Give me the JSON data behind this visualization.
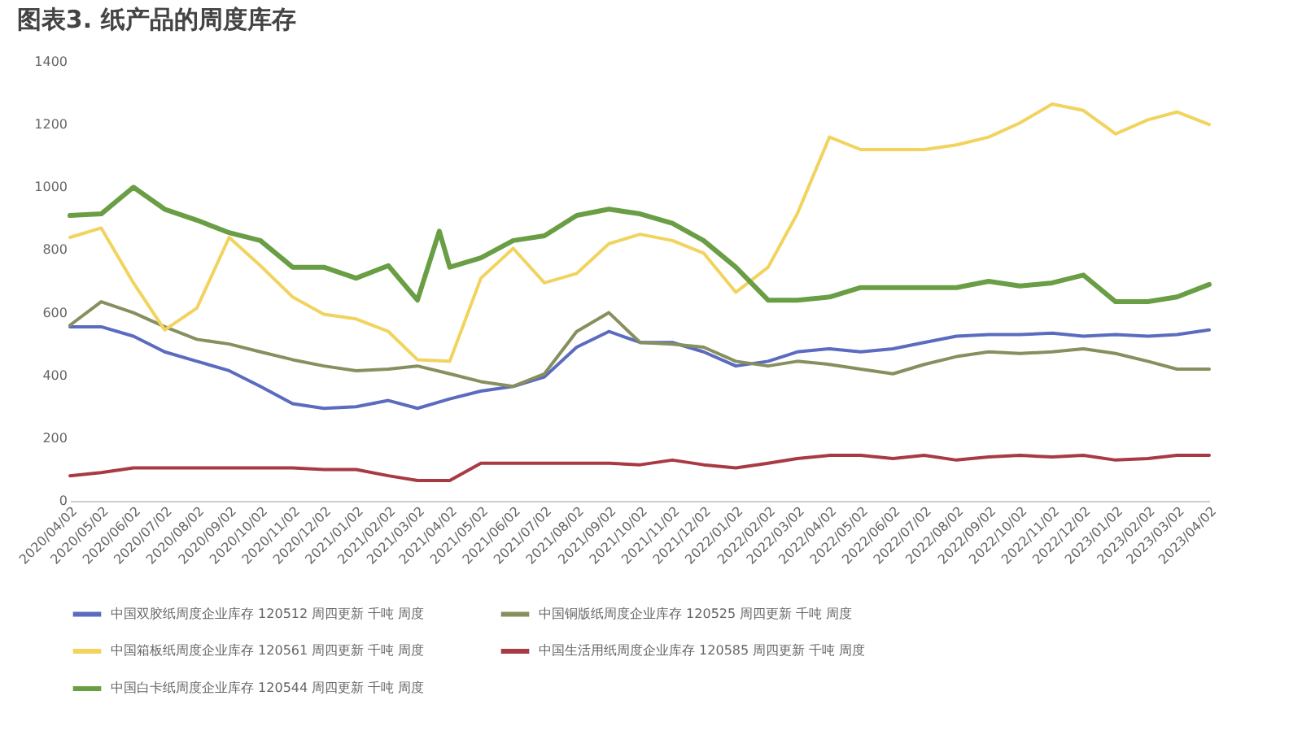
{
  "chart_data": {
    "type": "line",
    "title": "图表3.    纸产品的周度库存",
    "x": [
      "2020-04-02",
      "2020-05-02",
      "2020-06-02",
      "2020-07-02",
      "2020-08-02",
      "2020-09-02",
      "2020-10-02",
      "2020-11-02",
      "2020-12-02",
      "2021-01-02",
      "2021-02-02",
      "2021-03-02",
      "2021-04-02",
      "2021-05-02",
      "2021-06-02",
      "2021-07-02",
      "2021-08-02",
      "2021-09-02",
      "2021-10-02",
      "2021-11-02",
      "2021-12-02",
      "2022-01-02",
      "2022-02-02",
      "2022-03-02",
      "2022-04-02",
      "2022-05-02",
      "2022-06-02",
      "2022-07-02",
      "2022-08-02",
      "2022-09-02",
      "2022-10-02",
      "2022-11-02",
      "2022-12-02",
      "2023-01-02",
      "2023-02-02",
      "2023-03-02",
      "2023-04-02"
    ],
    "series": [
      {
        "name": "中国双胶纸周度企业库存 120512 周四更新 千吨 周度",
        "color": "#5b6bbf",
        "values": [
          555,
          555,
          525,
          475,
          445,
          415,
          365,
          310,
          295,
          300,
          320,
          295,
          325,
          350,
          365,
          395,
          490,
          540,
          505,
          505,
          475,
          430,
          445,
          475,
          485,
          475,
          485,
          505,
          525,
          530,
          530,
          535,
          525,
          530,
          525,
          530,
          545
        ]
      },
      {
        "name": "中国铜版纸周度企业库存 120525 周四更新 千吨 周度",
        "color": "#86905f",
        "values": [
          560,
          635,
          600,
          555,
          515,
          500,
          475,
          450,
          430,
          415,
          420,
          430,
          405,
          380,
          365,
          405,
          540,
          600,
          505,
          500,
          490,
          445,
          430,
          445,
          435,
          420,
          405,
          435,
          460,
          475,
          470,
          475,
          485,
          470,
          445,
          420,
          420
        ]
      },
      {
        "name": "中国箱板纸周度企业库存 120561 周四更新 千吨 周度",
        "color": "#f1d35e",
        "values": [
          840,
          870,
          695,
          545,
          615,
          840,
          750,
          650,
          595,
          580,
          540,
          450,
          445,
          710,
          805,
          695,
          725,
          820,
          850,
          830,
          790,
          665,
          745,
          915,
          1160,
          1120,
          1120,
          1120,
          1135,
          1160,
          1205,
          1265,
          1245,
          1170,
          1215,
          1240,
          1200
        ]
      },
      {
        "name": "中国生活用纸周度企业库存 120585 周四更新 千吨 周度",
        "color": "#a83a44",
        "values": [
          80,
          90,
          105,
          105,
          105,
          105,
          105,
          105,
          100,
          100,
          80,
          65,
          65,
          120,
          120,
          120,
          120,
          120,
          115,
          130,
          115,
          105,
          120,
          135,
          145,
          145,
          135,
          145,
          130,
          140,
          145,
          140,
          145,
          130,
          135,
          145,
          145
        ]
      },
      {
        "name": "中国白卡纸周度企业库存 120544 周四更新 千吨 周度",
        "color": "#6a9e45",
        "x": [
          "2020-04-02",
          "2020-05-02",
          "2020-06-02",
          "2020-07-02",
          "2020-08-02",
          "2020-09-02",
          "2020-10-02",
          "2020-11-02",
          "2020-12-02",
          "2021-01-02",
          "2021-02-02",
          "2021-03-02",
          "2021-03-23",
          "2021-04-02",
          "2021-05-02",
          "2021-06-02",
          "2021-07-02",
          "2021-08-02",
          "2021-09-02",
          "2021-10-02",
          "2021-11-02",
          "2021-12-02",
          "2022-01-02",
          "2022-02-02",
          "2022-03-02",
          "2022-04-02",
          "2022-05-02",
          "2022-06-02",
          "2022-07-02",
          "2022-08-02",
          "2022-09-02",
          "2022-10-02",
          "2022-11-02",
          "2022-12-02",
          "2023-01-02",
          "2023-02-02",
          "2023-03-02",
          "2023-04-02"
        ],
        "values": [
          910,
          915,
          1000,
          930,
          895,
          855,
          830,
          745,
          745,
          710,
          750,
          640,
          860,
          745,
          775,
          830,
          845,
          910,
          930,
          915,
          885,
          830,
          745,
          640,
          640,
          650,
          680,
          680,
          680,
          680,
          700,
          685,
          695,
          720,
          635,
          635,
          650,
          690
        ]
      }
    ],
    "ylim": [
      0,
      1400
    ],
    "yticks": [
      0,
      200,
      400,
      600,
      800,
      1000,
      1200,
      1400
    ],
    "xlim": [
      "2020-04-02",
      "2023-04-02"
    ],
    "xticks": [
      {
        "value": "2020-04-02",
        "label": "2020/04/02"
      },
      {
        "value": "2020-05-02",
        "label": "2020/05/02"
      },
      {
        "value": "2020-06-02",
        "label": "2020/06/02"
      },
      {
        "value": "2020-07-02",
        "label": "2020/07/02"
      },
      {
        "value": "2020-08-02",
        "label": "2020/08/02"
      },
      {
        "value": "2020-09-02",
        "label": "2020/09/02"
      },
      {
        "value": "2020-10-02",
        "label": "2020/10/02"
      },
      {
        "value": "2020-11-02",
        "label": "2020/11/02"
      },
      {
        "value": "2020-12-02",
        "label": "2020/12/02"
      },
      {
        "value": "2021-01-02",
        "label": "2021/01/02"
      },
      {
        "value": "2021-02-02",
        "label": "2021/02/02"
      },
      {
        "value": "2021-03-02",
        "label": "2021/03/02"
      },
      {
        "value": "2021-04-02",
        "label": "2021/04/02"
      },
      {
        "value": "2021-05-02",
        "label": "2021/05/02"
      },
      {
        "value": "2021-06-02",
        "label": "2021/06/02"
      },
      {
        "value": "2021-07-02",
        "label": "2021/07/02"
      },
      {
        "value": "2021-08-02",
        "label": "2021/08/02"
      },
      {
        "value": "2021-09-02",
        "label": "2021/09/02"
      },
      {
        "value": "2021-10-02",
        "label": "2021/10/02"
      },
      {
        "value": "2021-11-02",
        "label": "2021/11/02"
      },
      {
        "value": "2021-12-02",
        "label": "2021/12/02"
      },
      {
        "value": "2022-01-02",
        "label": "2022/01/02"
      },
      {
        "value": "2022-02-02",
        "label": "2022/02/02"
      },
      {
        "value": "2022-03-02",
        "label": "2022/03/02"
      },
      {
        "value": "2022-04-02",
        "label": "2022/04/02"
      },
      {
        "value": "2022-05-02",
        "label": "2022/05/02"
      },
      {
        "value": "2022-06-02",
        "label": "2022/06/02"
      },
      {
        "value": "2022-07-02",
        "label": "2022/07/02"
      },
      {
        "value": "2022-08-02",
        "label": "2022/08/02"
      },
      {
        "value": "2022-09-02",
        "label": "2022/09/02"
      },
      {
        "value": "2022-10-02",
        "label": "2022/10/02"
      },
      {
        "value": "2022-11-02",
        "label": "2022/11/02"
      },
      {
        "value": "2022-12-02",
        "label": "2022/12/02"
      },
      {
        "value": "2023-01-02",
        "label": "2023/01/02"
      },
      {
        "value": "2023-02-02",
        "label": "2023/02/02"
      },
      {
        "value": "2023-03-02",
        "label": "2023/03/02"
      },
      {
        "value": "2023-04-02",
        "label": "2023/04/02"
      }
    ],
    "grid": false,
    "legend": "bottom",
    "marker": "none",
    "line_style": "solid"
  }
}
